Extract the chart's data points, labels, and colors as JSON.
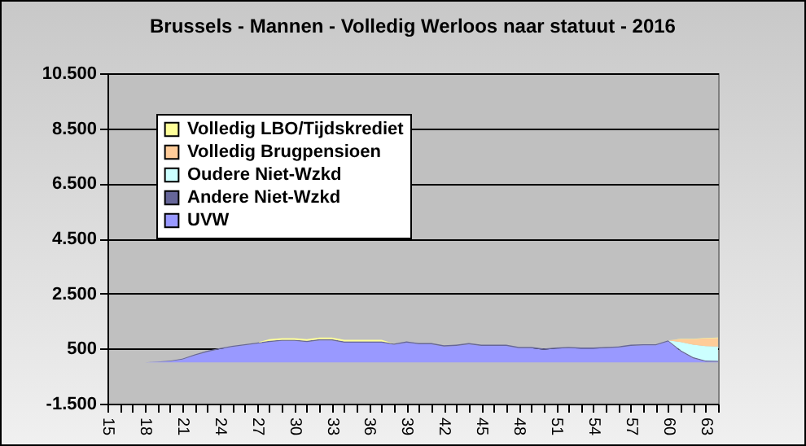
{
  "chart_data": {
    "type": "area",
    "title": "Brussels - Mannen - Volledig Werloos naar statuut - 2016",
    "stacked": true,
    "categories": [
      "15",
      null,
      null,
      "18",
      null,
      null,
      "21",
      null,
      null,
      "24",
      null,
      null,
      "27",
      null,
      null,
      "30",
      null,
      null,
      "33",
      null,
      null,
      "36",
      null,
      null,
      "39",
      null,
      null,
      "42",
      null,
      null,
      "45",
      null,
      null,
      "48",
      null,
      null,
      "51",
      null,
      null,
      "54",
      null,
      null,
      "57",
      null,
      null,
      "60",
      null,
      null,
      "63",
      null
    ],
    "series": [
      {
        "name": "UVW",
        "color": "#9999ff",
        "values": [
          0,
          0,
          0,
          0,
          20,
          40,
          100,
          250,
          380,
          480,
          560,
          620,
          680,
          740,
          780,
          780,
          740,
          800,
          800,
          720,
          720,
          720,
          720,
          640,
          720,
          660,
          660,
          580,
          600,
          660,
          600,
          600,
          600,
          520,
          520,
          460,
          500,
          520,
          500,
          500,
          520,
          540,
          600,
          620,
          620,
          760,
          400,
          150,
          30,
          20
        ]
      },
      {
        "name": "Andere Niet-Wzkd",
        "color": "#666699",
        "values": [
          null,
          null,
          null,
          0,
          10,
          20,
          30,
          40,
          40,
          40,
          40,
          40,
          40,
          40,
          40,
          40,
          40,
          40,
          40,
          40,
          40,
          40,
          40,
          40,
          40,
          40,
          40,
          40,
          40,
          40,
          40,
          40,
          40,
          40,
          40,
          40,
          40,
          40,
          40,
          40,
          40,
          40,
          40,
          40,
          40,
          40,
          40,
          40,
          40,
          40
        ]
      },
      {
        "name": "Oudere Niet-Wzkd",
        "color": "#ccffff",
        "values": [
          null,
          null,
          null,
          null,
          null,
          null,
          null,
          null,
          null,
          null,
          null,
          null,
          null,
          null,
          null,
          null,
          null,
          null,
          null,
          null,
          null,
          null,
          null,
          null,
          null,
          null,
          null,
          null,
          null,
          null,
          null,
          null,
          null,
          null,
          null,
          null,
          null,
          null,
          null,
          null,
          null,
          null,
          null,
          null,
          null,
          0,
          300,
          450,
          520,
          520
        ]
      },
      {
        "name": "Volledig Brugpensioen",
        "color": "#ffcc99",
        "values": [
          null,
          null,
          null,
          null,
          null,
          null,
          null,
          null,
          null,
          null,
          null,
          null,
          null,
          null,
          null,
          null,
          null,
          null,
          null,
          null,
          null,
          null,
          null,
          null,
          null,
          null,
          null,
          null,
          null,
          null,
          null,
          null,
          null,
          null,
          null,
          null,
          null,
          null,
          null,
          null,
          null,
          null,
          null,
          null,
          null,
          0,
          100,
          200,
          280,
          300
        ]
      },
      {
        "name": "Volledig LBO/Tijdskrediet",
        "color": "#ffff99",
        "values": [
          null,
          null,
          null,
          null,
          null,
          null,
          null,
          null,
          null,
          null,
          null,
          null,
          0,
          60,
          60,
          60,
          60,
          60,
          60,
          60,
          60,
          60,
          60,
          0,
          null,
          null,
          null,
          null,
          null,
          null,
          null,
          null,
          null,
          null,
          null,
          null,
          null,
          null,
          null,
          null,
          null,
          null,
          null,
          null,
          null,
          0,
          20,
          20,
          20,
          20
        ]
      }
    ],
    "ylim": [
      -1500,
      10500
    ],
    "yticks": [
      {
        "value": -1500,
        "label": "-1.500"
      },
      500,
      {
        "value": 2500,
        "label": "2.500"
      },
      {
        "value": 4500,
        "label": "4.500"
      },
      {
        "value": 6500,
        "label": "6.500"
      },
      {
        "value": 8500,
        "label": "8.500"
      },
      {
        "value": 10500,
        "label": "10.500"
      }
    ],
    "grid": "y",
    "legend": "top left"
  }
}
